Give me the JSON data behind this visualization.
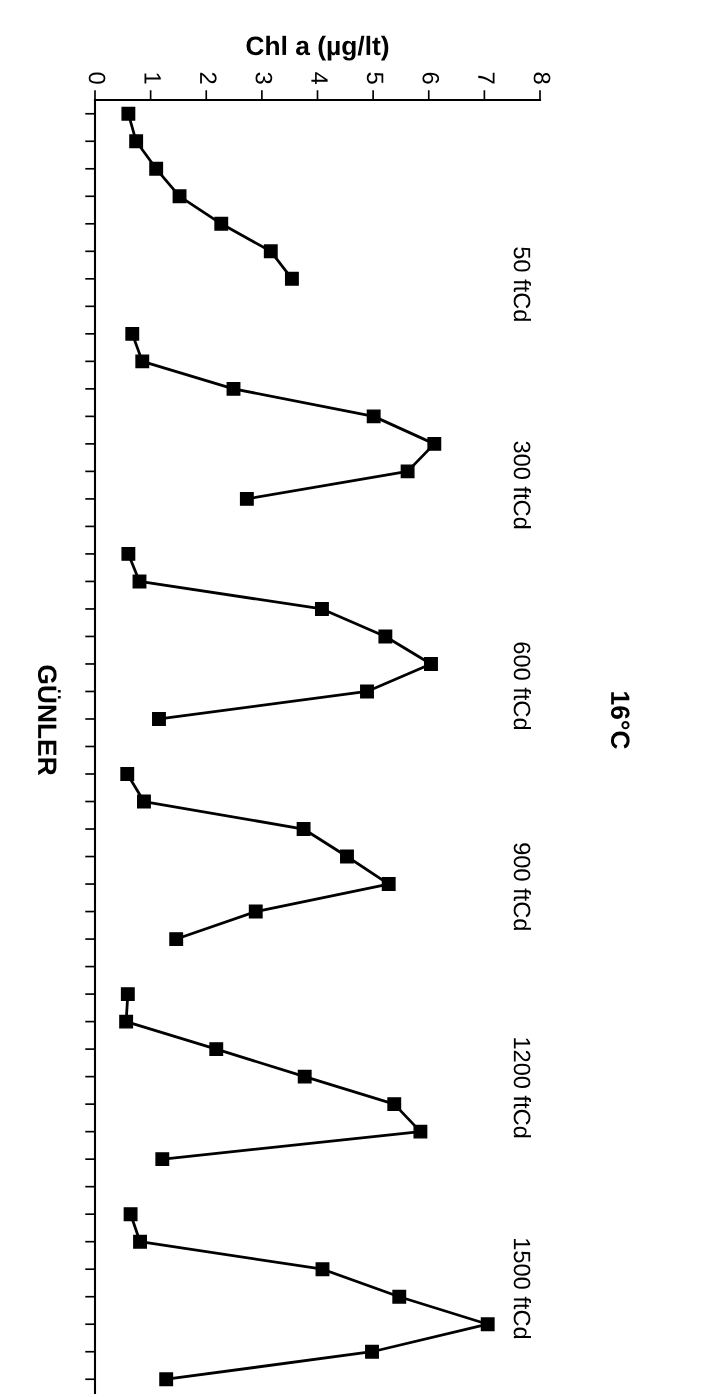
{
  "chart_data": {
    "type": "line",
    "title": "16°C",
    "xlabel": "Chl a (µg/lt)",
    "ylabel": "GÜNLER",
    "orientation": "horizontal",
    "annotations": [
      "50 ftCd",
      "300 ftCd",
      "600 ftCd",
      "900 ftCd",
      "1200 ftCd",
      "1500 ftCd"
    ],
    "categories": [
      null,
      null,
      null,
      null,
      null,
      null,
      null,
      null,
      null,
      null,
      null,
      null,
      null,
      null,
      null,
      null,
      null,
      null,
      null,
      null,
      null,
      null,
      null,
      null,
      null,
      null,
      null,
      null,
      null,
      null,
      null,
      null,
      null,
      null,
      null,
      null,
      null,
      null,
      null,
      null,
      null,
      null,
      null,
      null,
      null,
      null,
      null
    ],
    "series": [
      {
        "color": "#000000",
        "values": [
          0.6,
          0.74,
          1.1,
          1.52,
          2.27,
          3.16,
          3.54,
          null,
          0.67,
          0.85,
          2.49,
          5.01,
          6.1,
          5.62,
          2.73,
          null,
          0.6,
          0.8,
          4.08,
          5.22,
          6.04,
          4.89,
          1.15,
          null,
          0.58,
          0.88,
          3.75,
          4.53,
          5.28,
          2.89,
          1.46,
          null,
          0.59,
          0.56,
          2.18,
          3.77,
          5.38,
          5.85,
          1.21,
          null,
          0.64,
          0.81,
          4.09,
          5.47,
          7.06,
          4.98,
          1.28
        ]
      }
    ],
    "xlim": [
      0,
      8
    ],
    "xticks": [
      0,
      1,
      2,
      3,
      4,
      5,
      6,
      7,
      8
    ],
    "tick_labels": "x",
    "grid": false,
    "legend": false,
    "marker": "square",
    "line_style": "solid"
  }
}
